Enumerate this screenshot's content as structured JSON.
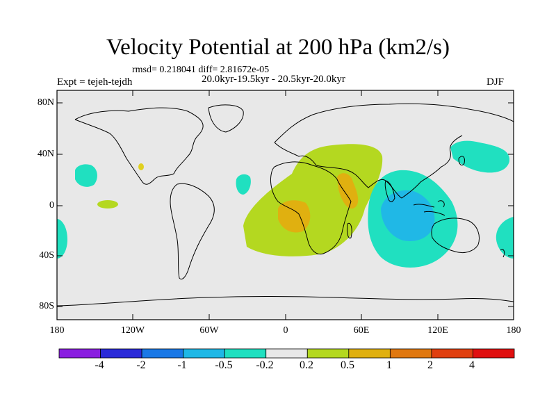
{
  "title": "Velocity Potential at 200 hPa (km2/s)",
  "stats_line": "rmsd= 0.218041 diff= 2.81672e-05",
  "experiment": "Expt = tejeh-tejdh",
  "periods": "20.0kyr-19.5kyr - 20.5kyr-20.0kyr",
  "season": "DJF",
  "lat_labels": [
    "80N",
    "40N",
    "0",
    "40S",
    "80S"
  ],
  "lon_labels": [
    "180",
    "120W",
    "60W",
    "0",
    "60E",
    "120E",
    "180"
  ],
  "colorbar": {
    "labels": [
      "-4",
      "-2",
      "-1",
      "-0.5",
      "-0.2",
      "0.2",
      "0.5",
      "1",
      "2",
      "4"
    ],
    "colors": [
      "#8a1ee0",
      "#2a2ad8",
      "#1a78e6",
      "#20b8e6",
      "#20e0c0",
      "#e8e8e8",
      "#b4d820",
      "#e0b010",
      "#e07810",
      "#e04010",
      "#e01010"
    ]
  },
  "colors": {
    "ocean": "#e8e8e8",
    "positive_low": "#b4d820",
    "positive_mid": "#e0b010",
    "negative_low": "#20e0c0",
    "negative_mid": "#20b8e6",
    "coast": "#000000"
  }
}
